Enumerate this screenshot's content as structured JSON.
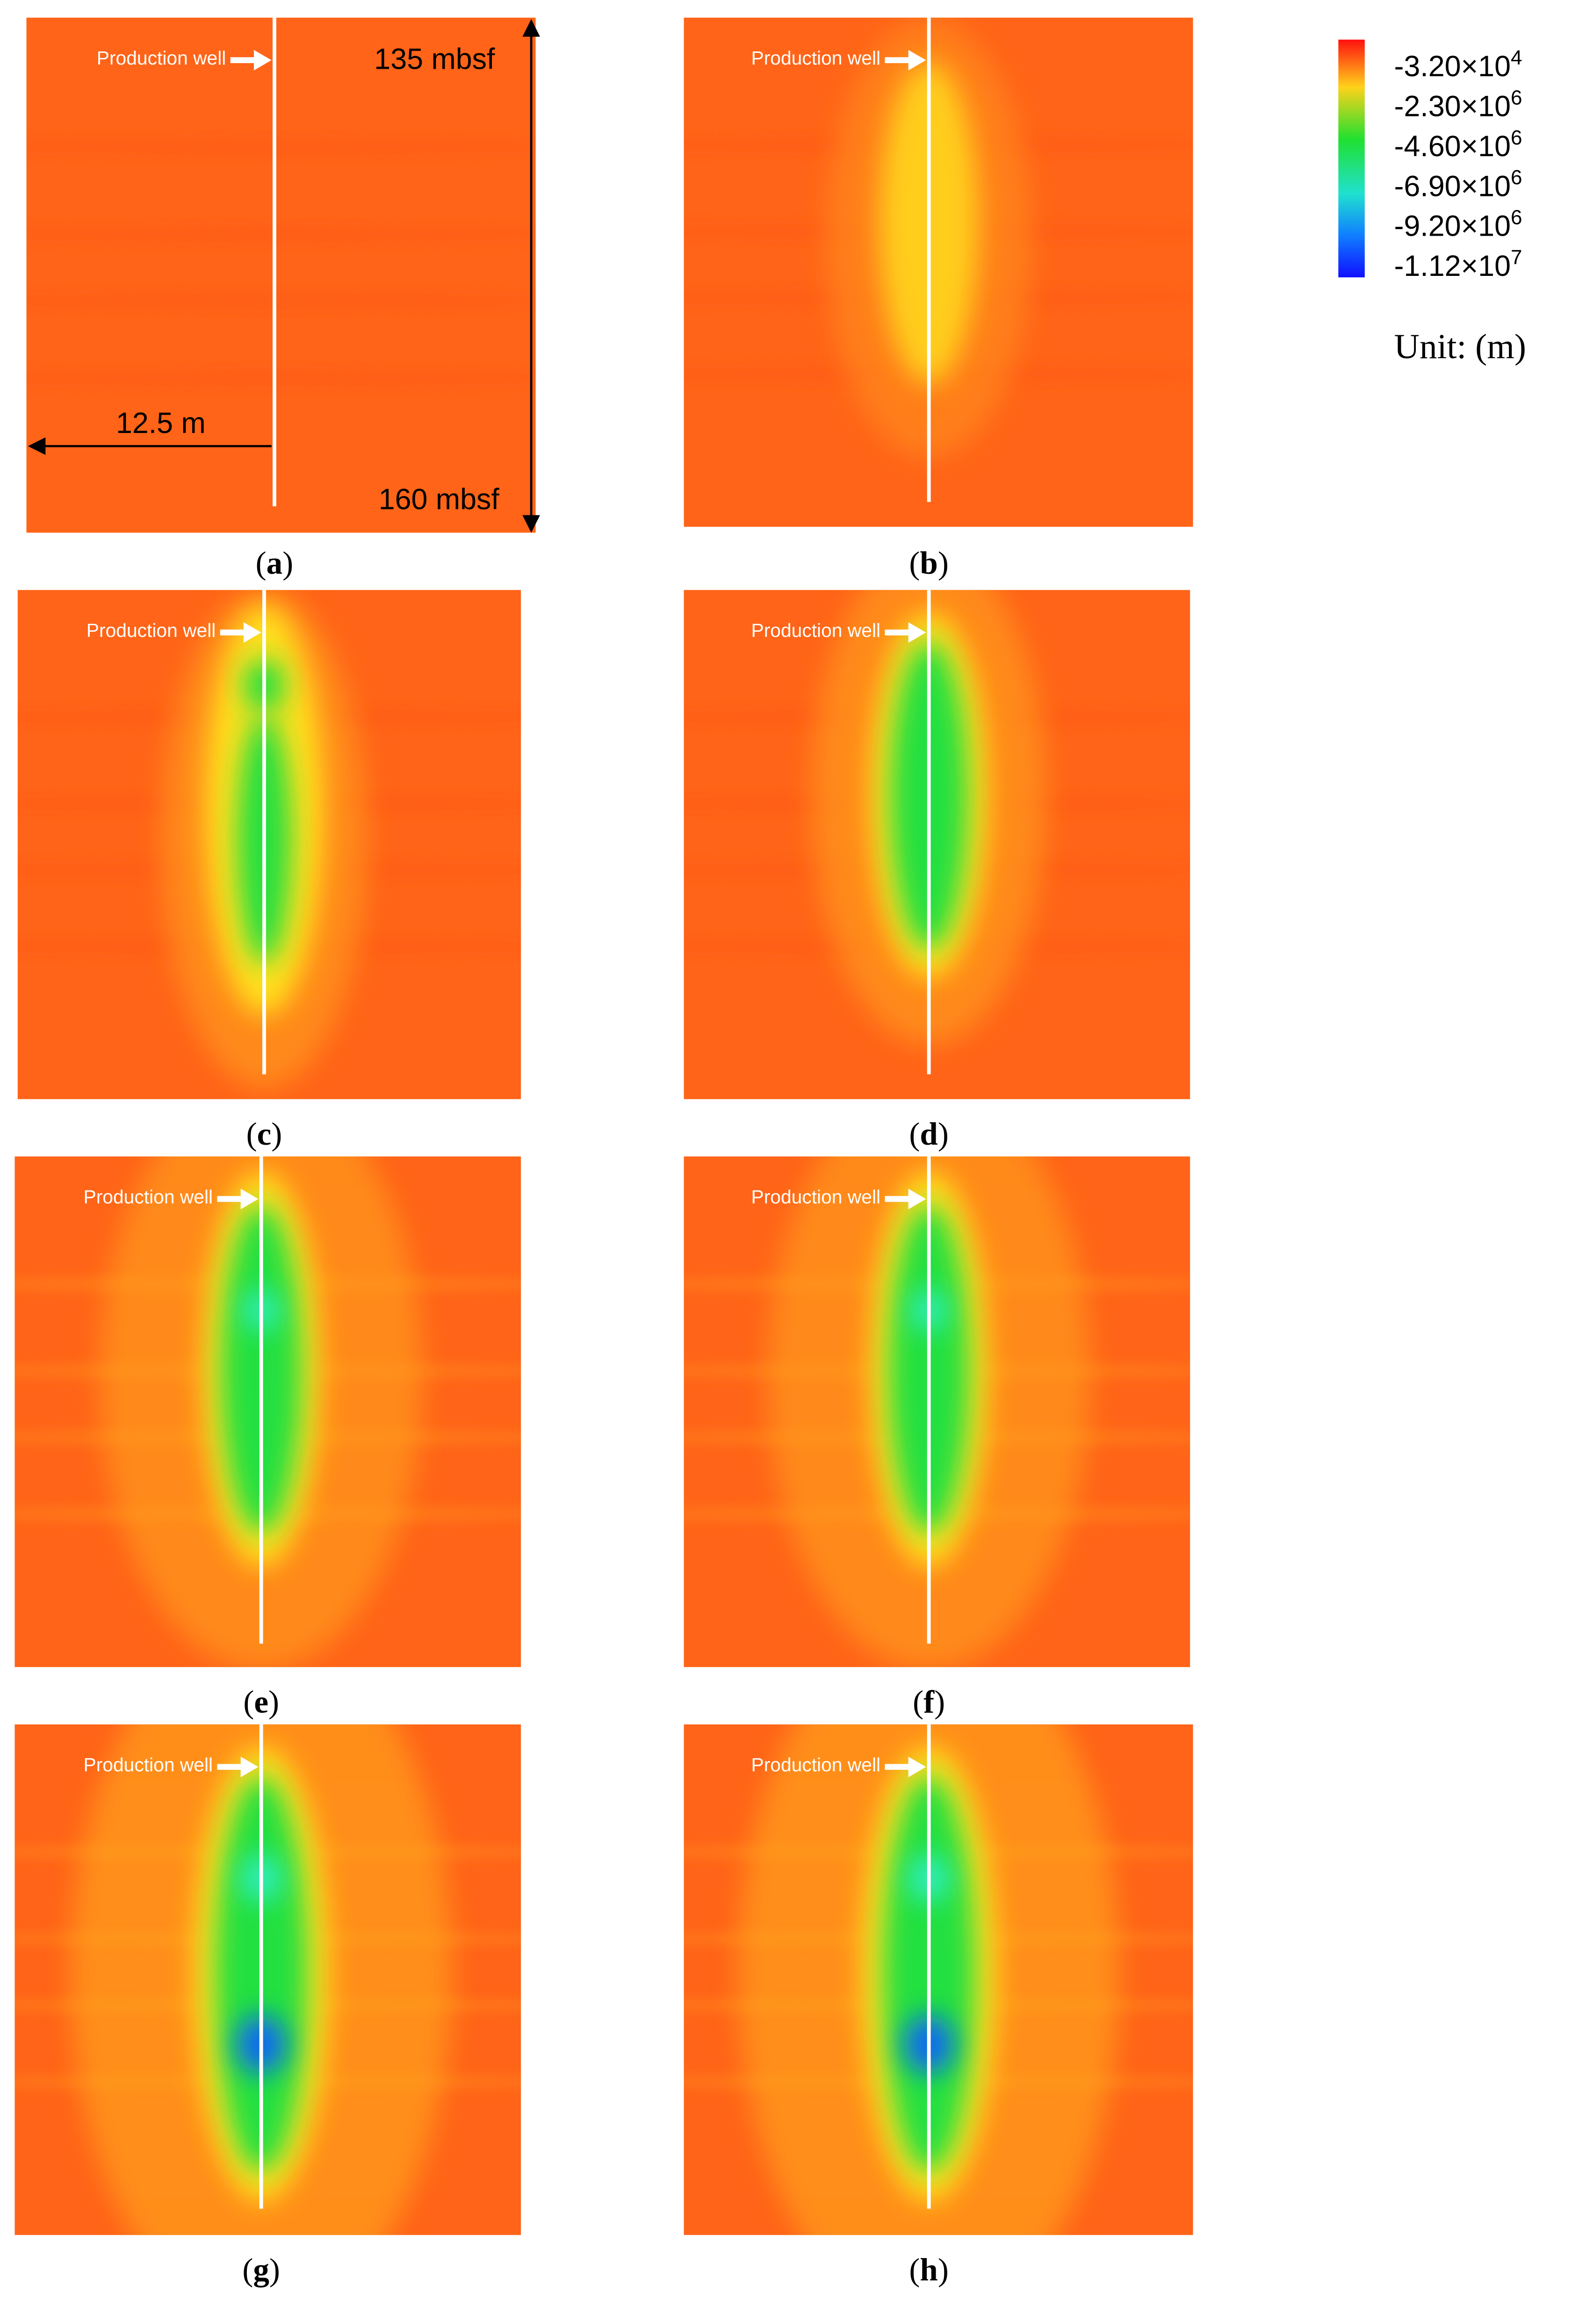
{
  "panels": [
    {
      "caption": [
        "(",
        "a",
        ")"
      ],
      "well_label": "Production well"
    },
    {
      "caption": [
        "(",
        "b",
        ")"
      ],
      "well_label": "Production well"
    },
    {
      "caption": [
        "(",
        "c",
        ")"
      ],
      "well_label": "Production well"
    },
    {
      "caption": [
        "(",
        "d",
        ")"
      ],
      "well_label": "Production well"
    },
    {
      "caption": [
        "(",
        "e",
        ")"
      ],
      "well_label": "Production well"
    },
    {
      "caption": [
        "(",
        "f",
        ")"
      ],
      "well_label": "Production well"
    },
    {
      "caption": [
        "(",
        "g",
        ")"
      ],
      "well_label": "Production well"
    },
    {
      "caption": [
        "(",
        "h",
        ")"
      ],
      "well_label": "Production well"
    }
  ],
  "annotations": {
    "top_depth": "135 mbsf",
    "bottom_depth": "160 mbsf",
    "radius": "12.5 m"
  },
  "colorbar": {
    "labels": [
      {
        "base": "-3.20×10",
        "exponent": "4"
      },
      {
        "base": "-2.30×10",
        "exponent": "6"
      },
      {
        "base": "-4.60×10",
        "exponent": "6"
      },
      {
        "base": "-6.90×10",
        "exponent": "6"
      },
      {
        "base": "-9.20×10",
        "exponent": "6"
      },
      {
        "base": "-1.12×10",
        "exponent": "7"
      }
    ],
    "unit": "Unit: (m)"
  }
}
